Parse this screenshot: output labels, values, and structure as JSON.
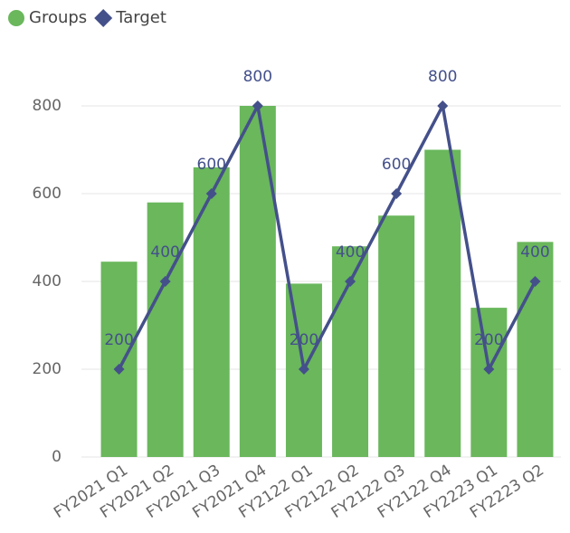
{
  "chart_data": {
    "type": "bar-line",
    "categories": [
      "FY2021 Q1",
      "FY2021 Q2",
      "FY2021 Q3",
      "FY2021 Q4",
      "FY2122 Q1",
      "FY2122 Q2",
      "FY2122 Q3",
      "FY2122 Q4",
      "FY2223 Q1",
      "FY2223 Q2"
    ],
    "series": [
      {
        "name": "Groups",
        "type": "bar",
        "color": "#6ab75c",
        "values": [
          445,
          580,
          660,
          800,
          395,
          480,
          550,
          700,
          340,
          490
        ]
      },
      {
        "name": "Target",
        "type": "line",
        "color": "#44508a",
        "values": [
          200,
          400,
          600,
          800,
          200,
          400,
          600,
          800,
          200,
          400
        ]
      }
    ],
    "ylim": [
      0,
      800
    ],
    "yticks": [
      0,
      200,
      400,
      600,
      800
    ],
    "grid": true,
    "legend": "top-left"
  }
}
